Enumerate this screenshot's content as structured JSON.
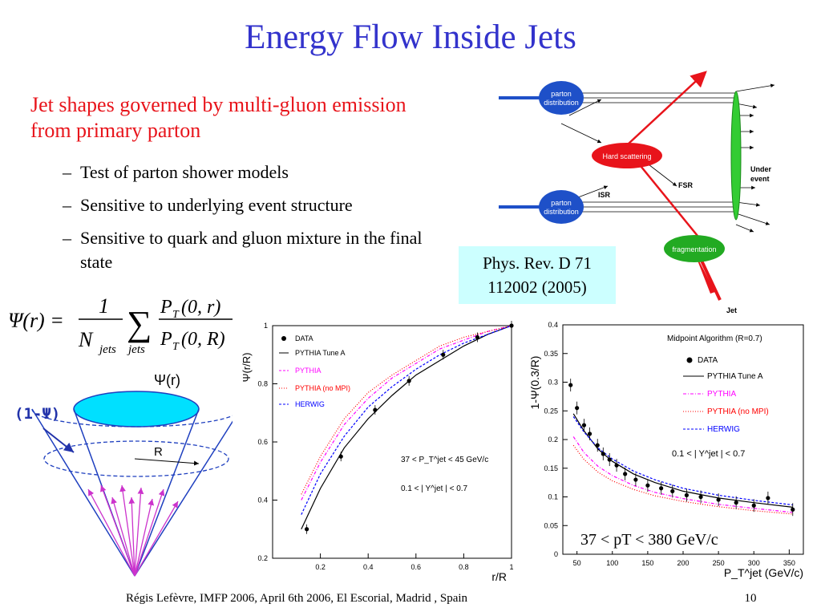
{
  "title": "Energy Flow Inside Jets",
  "lead_text": "Jet shapes governed by multi-gluon emission from primary parton",
  "bullets": [
    "Test of parton shower models",
    "Sensitive to underlying event structure",
    "Sensitive to quark and gluon mixture in the final state"
  ],
  "reference": {
    "line1": "Phys. Rev. D 71",
    "line2": "112002 (2005)"
  },
  "formula": {
    "lhs": "Ψ(r) =",
    "numerator_1": "1",
    "denominator_1": "N",
    "denominator_1_sub": "jets",
    "sum_sub": "jets",
    "numerator_2": "P",
    "numerator_2_sub": "T",
    "numerator_2_args": "(0, r)",
    "denominator_2": "P",
    "denominator_2_sub": "T",
    "denominator_2_args": "(0, R)"
  },
  "cone": {
    "psi_label": "Ψ(r)",
    "one_minus_psi_label": "(1-Ψ)",
    "radius_label": "R"
  },
  "diagram": {
    "parton_distribution_label_1": "parton",
    "parton_distribution_label_2": "distribution",
    "hard_scattering_label": "Hard scattering",
    "isr_label": "ISR",
    "fsr_label": "FSR",
    "under_event_label_1": "Under",
    "under_event_label_2": "event",
    "fragmentation_label": "fragmentation",
    "jet_label": "Jet"
  },
  "chart_data": [
    {
      "type": "line",
      "xlabel": "r/R",
      "ylabel": "Ψ(r/R)",
      "xlim": [
        0,
        1
      ],
      "ylim": [
        0.2,
        1.0
      ],
      "xticks": [
        "0.2",
        "0.4",
        "0.6",
        "0.8",
        "1"
      ],
      "yticks": [
        "0.2",
        "0.4",
        "0.6",
        "0.8",
        "1"
      ],
      "legend": [
        "DATA",
        "PYTHIA Tune A",
        "PYTHIA",
        "PYTHIA (no MPI)",
        "HERWIG"
      ],
      "annotations": [
        "37 < P_T^jet < 45 GeV/c",
        "0.1 < | Y^jet | < 0.7"
      ],
      "series": [
        {
          "name": "DATA",
          "x": [
            0.143,
            0.286,
            0.429,
            0.571,
            0.714,
            0.857,
            1.0
          ],
          "y": [
            0.3,
            0.55,
            0.71,
            0.81,
            0.9,
            0.96,
            1.0
          ]
        },
        {
          "name": "PYTHIA Tune A",
          "x": [
            0.12,
            0.2,
            0.3,
            0.4,
            0.5,
            0.6,
            0.7,
            0.8,
            0.9,
            1.0
          ],
          "y": [
            0.3,
            0.44,
            0.58,
            0.68,
            0.76,
            0.83,
            0.88,
            0.93,
            0.97,
            1.0
          ]
        },
        {
          "name": "PYTHIA",
          "x": [
            0.12,
            0.2,
            0.3,
            0.4,
            0.5,
            0.6,
            0.7,
            0.8,
            0.9,
            1.0
          ],
          "y": [
            0.4,
            0.53,
            0.66,
            0.75,
            0.82,
            0.87,
            0.92,
            0.95,
            0.98,
            1.0
          ]
        },
        {
          "name": "PYTHIA (no MPI)",
          "x": [
            0.12,
            0.2,
            0.3,
            0.4,
            0.5,
            0.6,
            0.7,
            0.8,
            0.9,
            1.0
          ],
          "y": [
            0.42,
            0.55,
            0.68,
            0.77,
            0.83,
            0.88,
            0.93,
            0.96,
            0.98,
            1.0
          ]
        },
        {
          "name": "HERWIG",
          "x": [
            0.12,
            0.2,
            0.3,
            0.4,
            0.5,
            0.6,
            0.7,
            0.8,
            0.9,
            1.0
          ],
          "y": [
            0.35,
            0.49,
            0.62,
            0.72,
            0.79,
            0.85,
            0.9,
            0.94,
            0.97,
            1.0
          ]
        }
      ],
      "colors": {
        "DATA": "#000000",
        "PYTHIA Tune A": "#000000",
        "PYTHIA": "#ff00ff",
        "PYTHIA (no MPI)": "#ff0000",
        "HERWIG": "#0000ff"
      }
    },
    {
      "type": "line",
      "xlabel": "P_T^jet (GeV/c)",
      "ylabel": "1-Ψ(0.3/R)",
      "xlim": [
        30,
        370
      ],
      "ylim": [
        0,
        0.4
      ],
      "xticks": [
        "50",
        "100",
        "150",
        "200",
        "250",
        "300",
        "350"
      ],
      "yticks": [
        "0",
        "0.05",
        "0.1",
        "0.15",
        "0.2",
        "0.25",
        "0.3",
        "0.35",
        "0.4"
      ],
      "legend": [
        "DATA",
        "PYTHIA Tune A",
        "PYTHIA",
        "PYTHIA (no MPI)",
        "HERWIG"
      ],
      "annotations": [
        "Midpoint Algorithm (R=0.7)",
        "0.1 < | Y^jet | < 0.7",
        "37 < pT < 380 GeV/c"
      ],
      "series": [
        {
          "name": "DATA",
          "x": [
            41,
            50,
            60,
            68,
            79,
            87,
            96,
            106,
            118,
            133,
            150,
            169,
            185,
            205,
            225,
            250,
            275,
            300,
            320,
            355
          ],
          "y": [
            0.295,
            0.255,
            0.225,
            0.21,
            0.19,
            0.175,
            0.165,
            0.155,
            0.14,
            0.13,
            0.12,
            0.115,
            0.11,
            0.103,
            0.1,
            0.095,
            0.09,
            0.085,
            0.098,
            0.078
          ]
        },
        {
          "name": "PYTHIA Tune A",
          "x": [
            45,
            60,
            80,
            100,
            130,
            160,
            200,
            250,
            300,
            355
          ],
          "y": [
            0.245,
            0.215,
            0.183,
            0.162,
            0.14,
            0.125,
            0.11,
            0.098,
            0.09,
            0.082
          ]
        },
        {
          "name": "PYTHIA",
          "x": [
            45,
            60,
            80,
            100,
            130,
            160,
            200,
            250,
            300,
            355
          ],
          "y": [
            0.205,
            0.177,
            0.153,
            0.137,
            0.12,
            0.108,
            0.097,
            0.087,
            0.08,
            0.073
          ]
        },
        {
          "name": "PYTHIA (no MPI)",
          "x": [
            45,
            60,
            80,
            100,
            130,
            160,
            200,
            250,
            300,
            355
          ],
          "y": [
            0.19,
            0.165,
            0.143,
            0.128,
            0.113,
            0.102,
            0.092,
            0.083,
            0.076,
            0.07
          ]
        },
        {
          "name": "HERWIG",
          "x": [
            45,
            60,
            80,
            100,
            130,
            160,
            200,
            250,
            300,
            355
          ],
          "y": [
            0.24,
            0.213,
            0.185,
            0.166,
            0.145,
            0.13,
            0.115,
            0.103,
            0.094,
            0.086
          ]
        }
      ],
      "colors": {
        "DATA": "#000000",
        "PYTHIA Tune A": "#000000",
        "PYTHIA": "#ff00ff",
        "PYTHIA (no MPI)": "#ff0000",
        "HERWIG": "#0000ff"
      }
    }
  ],
  "footer": "Régis Lefèvre, IMFP 2006, April 6th 2006, El Escorial, Madrid , Spain",
  "page_number": "10"
}
